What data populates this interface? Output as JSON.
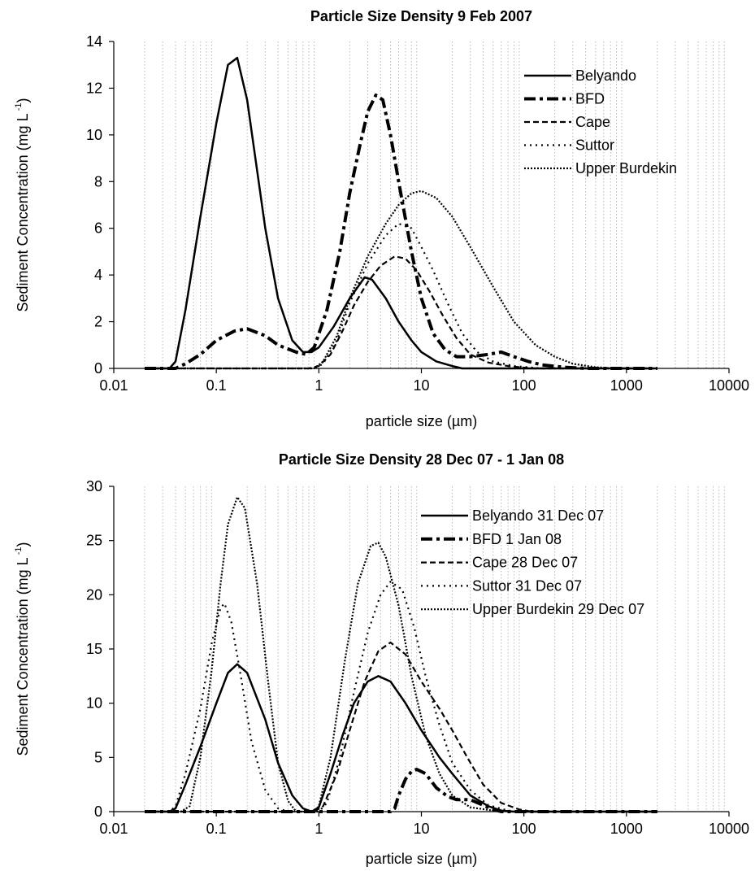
{
  "chart_data": [
    {
      "type": "line",
      "title": "Particle Size Density 9 Feb 2007",
      "xlabel": "particle size (µm)",
      "ylabel": "Sediment Concentration (mg L",
      "ylabel_sup": "-1",
      "ylabel_close": ")",
      "xscale": "log",
      "xlim": [
        0.01,
        10000
      ],
      "ylim": [
        0,
        14
      ],
      "x_ticks": [
        0.01,
        0.1,
        1,
        10,
        100,
        1000,
        10000
      ],
      "x_tick_labels": [
        "0.01",
        "0.1",
        "1",
        "10",
        "100",
        "1000",
        "10000"
      ],
      "y_ticks": [
        0,
        2,
        4,
        6,
        8,
        10,
        12,
        14
      ],
      "y_tick_labels": [
        "0",
        "2",
        "4",
        "6",
        "8",
        "10",
        "12",
        "14"
      ],
      "grid": "vertical minor dotted",
      "legend_position": "top-right",
      "series": [
        {
          "name": "Belyando",
          "style": "solid",
          "points": [
            [
              0.02,
              0
            ],
            [
              0.035,
              0
            ],
            [
              0.04,
              0.3
            ],
            [
              0.05,
              2.5
            ],
            [
              0.07,
              6.5
            ],
            [
              0.1,
              10.5
            ],
            [
              0.13,
              13.0
            ],
            [
              0.16,
              13.3
            ],
            [
              0.2,
              11.5
            ],
            [
              0.3,
              6.0
            ],
            [
              0.4,
              3.0
            ],
            [
              0.55,
              1.2
            ],
            [
              0.7,
              0.7
            ],
            [
              0.85,
              0.7
            ],
            [
              1.0,
              0.9
            ],
            [
              1.4,
              1.8
            ],
            [
              2.0,
              3.0
            ],
            [
              2.8,
              3.9
            ],
            [
              3.3,
              3.8
            ],
            [
              4.5,
              3.0
            ],
            [
              6,
              2.0
            ],
            [
              8,
              1.2
            ],
            [
              10,
              0.7
            ],
            [
              14,
              0.3
            ],
            [
              20,
              0.1
            ],
            [
              25,
              0
            ],
            [
              2000,
              0
            ]
          ]
        },
        {
          "name": "BFD",
          "style": "long-dash-dot",
          "points": [
            [
              0.02,
              0
            ],
            [
              0.04,
              0
            ],
            [
              0.05,
              0.2
            ],
            [
              0.07,
              0.6
            ],
            [
              0.1,
              1.2
            ],
            [
              0.15,
              1.6
            ],
            [
              0.2,
              1.7
            ],
            [
              0.3,
              1.4
            ],
            [
              0.4,
              1.0
            ],
            [
              0.6,
              0.7
            ],
            [
              0.75,
              0.6
            ],
            [
              0.9,
              0.9
            ],
            [
              1.2,
              2.5
            ],
            [
              1.6,
              5.0
            ],
            [
              2.0,
              7.5
            ],
            [
              2.5,
              9.5
            ],
            [
              3.0,
              11.0
            ],
            [
              3.6,
              11.7
            ],
            [
              4.2,
              11.5
            ],
            [
              5.0,
              10.0
            ],
            [
              6.0,
              8.0
            ],
            [
              8,
              5.0
            ],
            [
              10,
              3.0
            ],
            [
              13,
              1.5
            ],
            [
              17,
              0.8
            ],
            [
              22,
              0.5
            ],
            [
              30,
              0.5
            ],
            [
              45,
              0.6
            ],
            [
              60,
              0.7
            ],
            [
              80,
              0.5
            ],
            [
              110,
              0.3
            ],
            [
              150,
              0.15
            ],
            [
              250,
              0.05
            ],
            [
              400,
              0
            ],
            [
              2000,
              0
            ]
          ]
        },
        {
          "name": "Cape",
          "style": "dashed",
          "points": [
            [
              0.02,
              0
            ],
            [
              0.8,
              0
            ],
            [
              1.0,
              0.1
            ],
            [
              1.3,
              0.6
            ],
            [
              1.7,
              1.6
            ],
            [
              2.2,
              2.7
            ],
            [
              3.0,
              3.7
            ],
            [
              4.0,
              4.4
            ],
            [
              5.5,
              4.8
            ],
            [
              7,
              4.7
            ],
            [
              9,
              4.2
            ],
            [
              12,
              3.3
            ],
            [
              16,
              2.3
            ],
            [
              22,
              1.3
            ],
            [
              30,
              0.6
            ],
            [
              45,
              0.25
            ],
            [
              70,
              0.1
            ],
            [
              120,
              0
            ],
            [
              2000,
              0
            ]
          ]
        },
        {
          "name": "Suttor",
          "style": "dotted",
          "points": [
            [
              0.02,
              0
            ],
            [
              0.9,
              0
            ],
            [
              1.1,
              0.2
            ],
            [
              1.5,
              1.2
            ],
            [
              2.0,
              2.8
            ],
            [
              3.0,
              4.5
            ],
            [
              4.5,
              5.7
            ],
            [
              6,
              6.2
            ],
            [
              8,
              6.0
            ],
            [
              10,
              5.2
            ],
            [
              13,
              4.2
            ],
            [
              18,
              2.8
            ],
            [
              25,
              1.5
            ],
            [
              35,
              0.7
            ],
            [
              50,
              0.3
            ],
            [
              80,
              0.1
            ],
            [
              150,
              0
            ],
            [
              2000,
              0
            ]
          ]
        },
        {
          "name": "Upper Burdekin",
          "style": "fine-dotted",
          "points": [
            [
              0.02,
              0
            ],
            [
              0.9,
              0
            ],
            [
              1.1,
              0.3
            ],
            [
              1.5,
              1.4
            ],
            [
              2.0,
              3.0
            ],
            [
              3.0,
              4.8
            ],
            [
              4.5,
              6.2
            ],
            [
              6,
              7.0
            ],
            [
              8,
              7.5
            ],
            [
              10,
              7.6
            ],
            [
              14,
              7.3
            ],
            [
              20,
              6.5
            ],
            [
              30,
              5.2
            ],
            [
              50,
              3.5
            ],
            [
              80,
              2.0
            ],
            [
              130,
              1.0
            ],
            [
              200,
              0.5
            ],
            [
              300,
              0.2
            ],
            [
              500,
              0.05
            ],
            [
              800,
              0
            ],
            [
              2000,
              0
            ]
          ]
        }
      ]
    },
    {
      "type": "line",
      "title": "Particle Size Density 28 Dec 07 - 1 Jan 08",
      "xlabel": "particle size (µm)",
      "ylabel": "Sediment Concentration (mg L",
      "ylabel_sup": "-1",
      "ylabel_close": ")",
      "xscale": "log",
      "xlim": [
        0.01,
        10000
      ],
      "ylim": [
        0,
        30
      ],
      "x_ticks": [
        0.01,
        0.1,
        1,
        10,
        100,
        1000,
        10000
      ],
      "x_tick_labels": [
        "0.01",
        "0.1",
        "1",
        "10",
        "100",
        "1000",
        "10000"
      ],
      "y_ticks": [
        0,
        5,
        10,
        15,
        20,
        25,
        30
      ],
      "y_tick_labels": [
        "0",
        "5",
        "10",
        "15",
        "20",
        "25",
        "30"
      ],
      "grid": "vertical minor dotted",
      "legend_position": "top-right",
      "series": [
        {
          "name": "Belyando 31 Dec 07",
          "style": "solid",
          "points": [
            [
              0.02,
              0
            ],
            [
              0.035,
              0
            ],
            [
              0.04,
              0.3
            ],
            [
              0.05,
              2.5
            ],
            [
              0.07,
              6.0
            ],
            [
              0.1,
              10.0
            ],
            [
              0.13,
              12.8
            ],
            [
              0.16,
              13.6
            ],
            [
              0.2,
              12.8
            ],
            [
              0.3,
              8.5
            ],
            [
              0.4,
              4.5
            ],
            [
              0.55,
              1.5
            ],
            [
              0.7,
              0.3
            ],
            [
              0.85,
              0
            ],
            [
              1.0,
              0.4
            ],
            [
              1.3,
              3.5
            ],
            [
              1.7,
              7.0
            ],
            [
              2.2,
              10.0
            ],
            [
              3.0,
              12.0
            ],
            [
              3.8,
              12.5
            ],
            [
              5,
              12.0
            ],
            [
              7,
              10.0
            ],
            [
              10,
              7.5
            ],
            [
              15,
              5.0
            ],
            [
              20,
              3.5
            ],
            [
              30,
              1.5
            ],
            [
              45,
              0.5
            ],
            [
              60,
              0.1
            ],
            [
              80,
              0
            ],
            [
              2000,
              0
            ]
          ]
        },
        {
          "name": "BFD 1 Jan 08",
          "style": "long-dash-dot",
          "points": [
            [
              0.02,
              0
            ],
            [
              5.0,
              0
            ],
            [
              5.5,
              0.3
            ],
            [
              6.0,
              1.5
            ],
            [
              7.0,
              3.0
            ],
            [
              8.0,
              3.7
            ],
            [
              9.0,
              3.9
            ],
            [
              11,
              3.5
            ],
            [
              14,
              2.2
            ],
            [
              18,
              1.4
            ],
            [
              22,
              1.1
            ],
            [
              30,
              1.1
            ],
            [
              40,
              0.6
            ],
            [
              50,
              0.2
            ],
            [
              60,
              0
            ],
            [
              2000,
              0
            ]
          ]
        },
        {
          "name": "Cape 28 Dec 07",
          "style": "dashed",
          "points": [
            [
              0.02,
              0
            ],
            [
              0.9,
              0
            ],
            [
              1.1,
              0.5
            ],
            [
              1.5,
              3.5
            ],
            [
              2.0,
              7.5
            ],
            [
              2.8,
              12.0
            ],
            [
              3.8,
              14.8
            ],
            [
              5,
              15.6
            ],
            [
              7,
              14.5
            ],
            [
              10,
              12.0
            ],
            [
              15,
              9.5
            ],
            [
              20,
              7.5
            ],
            [
              28,
              5.0
            ],
            [
              40,
              2.5
            ],
            [
              60,
              0.8
            ],
            [
              90,
              0.2
            ],
            [
              120,
              0
            ],
            [
              2000,
              0
            ]
          ]
        },
        {
          "name": "Suttor 31 Dec 07",
          "style": "dotted",
          "points": [
            [
              0.02,
              0
            ],
            [
              0.035,
              0
            ],
            [
              0.04,
              0.5
            ],
            [
              0.05,
              3.5
            ],
            [
              0.07,
              9.5
            ],
            [
              0.09,
              15.5
            ],
            [
              0.11,
              18.8
            ],
            [
              0.12,
              19.2
            ],
            [
              0.14,
              17.5
            ],
            [
              0.17,
              13.0
            ],
            [
              0.22,
              6.5
            ],
            [
              0.3,
              2.0
            ],
            [
              0.4,
              0.3
            ],
            [
              0.5,
              0
            ],
            [
              1.0,
              0
            ],
            [
              1.2,
              0.8
            ],
            [
              1.6,
              5.0
            ],
            [
              2.2,
              11.0
            ],
            [
              3.0,
              16.5
            ],
            [
              4.0,
              20.0
            ],
            [
              5.0,
              21.2
            ],
            [
              6.5,
              20.5
            ],
            [
              8.5,
              17.0
            ],
            [
              11,
              12.5
            ],
            [
              15,
              8.0
            ],
            [
              20,
              4.5
            ],
            [
              30,
              2.0
            ],
            [
              45,
              0.6
            ],
            [
              70,
              0.1
            ],
            [
              100,
              0
            ],
            [
              2000,
              0
            ]
          ]
        },
        {
          "name": "Upper Burdekin 29 Dec 07",
          "style": "fine-dotted",
          "points": [
            [
              0.02,
              0
            ],
            [
              0.045,
              0
            ],
            [
              0.055,
              0.5
            ],
            [
              0.07,
              5.0
            ],
            [
              0.09,
              13.0
            ],
            [
              0.11,
              21.0
            ],
            [
              0.13,
              26.5
            ],
            [
              0.16,
              29.0
            ],
            [
              0.19,
              28.0
            ],
            [
              0.25,
              21.0
            ],
            [
              0.32,
              12.0
            ],
            [
              0.4,
              4.5
            ],
            [
              0.5,
              1.0
            ],
            [
              0.6,
              0
            ],
            [
              0.9,
              0
            ],
            [
              1.0,
              0.5
            ],
            [
              1.3,
              5.0
            ],
            [
              1.8,
              14.0
            ],
            [
              2.4,
              21.0
            ],
            [
              3.2,
              24.5
            ],
            [
              3.8,
              24.8
            ],
            [
              4.5,
              23.5
            ],
            [
              6,
              19.0
            ],
            [
              8,
              12.5
            ],
            [
              11,
              7.0
            ],
            [
              15,
              3.5
            ],
            [
              20,
              1.5
            ],
            [
              30,
              0.4
            ],
            [
              50,
              0.1
            ],
            [
              80,
              0
            ],
            [
              2000,
              0
            ]
          ]
        }
      ]
    }
  ]
}
